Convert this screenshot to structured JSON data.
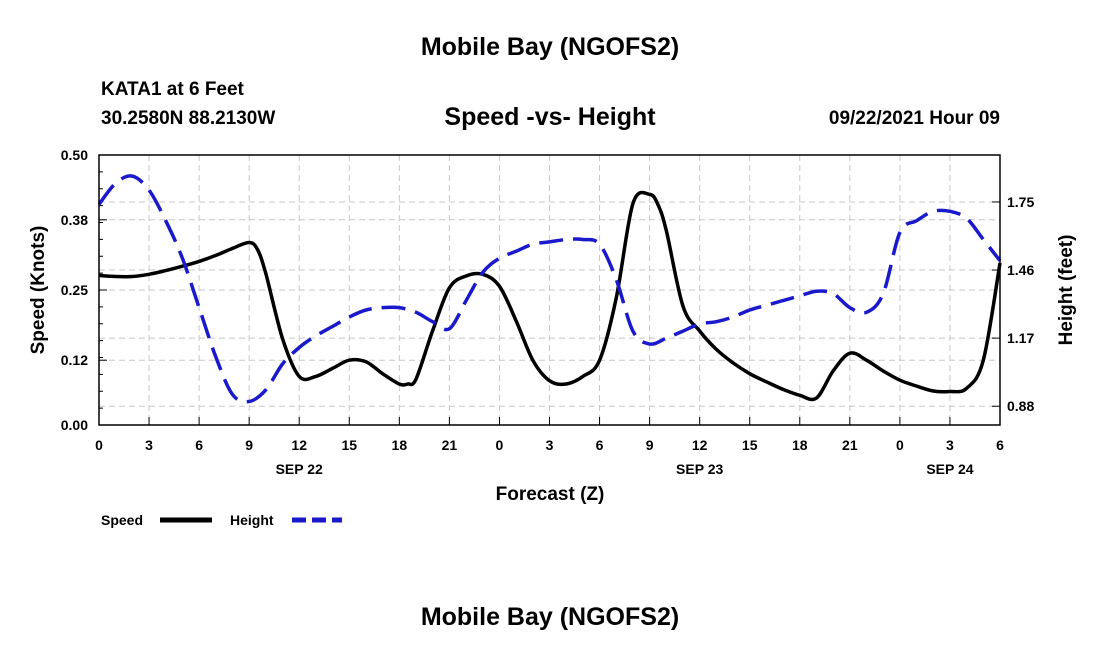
{
  "header": {
    "title": "Mobile Bay (NGOFS2)",
    "station": "KATA1 at 6 Feet",
    "coords": "30.2580N  88.2130W",
    "subtitle": "Speed -vs- Height",
    "datetime": "09/22/2021 Hour 09"
  },
  "footer": {
    "title": "Mobile Bay (NGOFS2)"
  },
  "chart_data": {
    "type": "line",
    "xlabel": "Forecast (Z)",
    "ylabel": "Speed (Knots)",
    "y2label": "Height (feet)",
    "xlim": [
      0,
      54
    ],
    "ylim": [
      0,
      0.5
    ],
    "y2lim": [
      0.8,
      1.95
    ],
    "grid": true,
    "legend_position": "bottom-left",
    "x_ticks": [
      0,
      3,
      6,
      9,
      12,
      15,
      18,
      21,
      24,
      27,
      30,
      33,
      36,
      39,
      42,
      45,
      48,
      51,
      54
    ],
    "x_tick_labels": [
      "0",
      "3",
      "6",
      "9",
      "12",
      "15",
      "18",
      "21",
      "0",
      "3",
      "6",
      "9",
      "12",
      "15",
      "18",
      "21",
      "0",
      "3",
      "6"
    ],
    "date_labels": [
      {
        "x": 12,
        "label": "SEP 22"
      },
      {
        "x": 36,
        "label": "SEP 23"
      },
      {
        "x": 51,
        "label": "SEP 24"
      }
    ],
    "y_ticks": [
      0.0,
      0.12,
      0.25,
      0.38,
      0.5
    ],
    "y_tick_labels": [
      "0.00",
      "0.12",
      "0.25",
      "0.38",
      "0.50"
    ],
    "y2_ticks": [
      0.88,
      1.17,
      1.46,
      1.75
    ],
    "y2_tick_labels": [
      "0.88",
      "1.17",
      "1.46",
      "1.75"
    ],
    "series": [
      {
        "name": "Speed",
        "axis": "left",
        "color": "#000000",
        "style": "solid",
        "x": [
          0,
          1,
          2,
          3,
          4,
          5,
          6,
          7,
          8,
          9,
          9.5,
          10,
          11,
          12,
          13,
          14,
          15,
          16,
          17,
          18,
          18.5,
          19,
          20,
          21,
          22,
          23,
          24,
          25,
          26,
          27,
          28,
          29,
          30,
          31,
          32,
          33,
          33.5,
          34,
          35,
          36,
          37,
          38,
          39,
          40,
          41,
          42,
          43,
          44,
          45,
          46,
          47,
          48,
          49,
          50,
          51,
          52,
          53,
          54
        ],
        "y": [
          0.277,
          0.275,
          0.275,
          0.279,
          0.286,
          0.294,
          0.303,
          0.314,
          0.327,
          0.338,
          0.325,
          0.28,
          0.16,
          0.09,
          0.09,
          0.105,
          0.12,
          0.117,
          0.095,
          0.076,
          0.076,
          0.085,
          0.175,
          0.254,
          0.276,
          0.279,
          0.257,
          0.193,
          0.12,
          0.082,
          0.076,
          0.09,
          0.12,
          0.235,
          0.41,
          0.427,
          0.408,
          0.36,
          0.22,
          0.174,
          0.14,
          0.115,
          0.095,
          0.08,
          0.066,
          0.055,
          0.05,
          0.1,
          0.133,
          0.12,
          0.1,
          0.083,
          0.072,
          0.063,
          0.062,
          0.068,
          0.12,
          0.3
        ]
      },
      {
        "name": "Height",
        "axis": "right",
        "color": "#1a1acc",
        "style": "dashed",
        "x": [
          0,
          1,
          2,
          3,
          4,
          5,
          6,
          7,
          8,
          9,
          10,
          11,
          12,
          13,
          14,
          15,
          16,
          17,
          18,
          19,
          20,
          21,
          22,
          23,
          24,
          25,
          26,
          27,
          28,
          29,
          30,
          31,
          32,
          33,
          34,
          35,
          36,
          37,
          38,
          39,
          40,
          41,
          42,
          43,
          44,
          45,
          46,
          47,
          48,
          49,
          50,
          51,
          52,
          53,
          54
        ],
        "y": [
          1.74,
          1.83,
          1.86,
          1.8,
          1.67,
          1.51,
          1.3,
          1.09,
          0.93,
          0.9,
          0.95,
          1.06,
          1.13,
          1.18,
          1.22,
          1.26,
          1.29,
          1.3,
          1.3,
          1.28,
          1.24,
          1.21,
          1.33,
          1.45,
          1.51,
          1.54,
          1.57,
          1.58,
          1.59,
          1.59,
          1.57,
          1.42,
          1.2,
          1.145,
          1.17,
          1.2,
          1.23,
          1.24,
          1.26,
          1.29,
          1.31,
          1.33,
          1.35,
          1.37,
          1.36,
          1.3,
          1.28,
          1.36,
          1.62,
          1.67,
          1.71,
          1.71,
          1.68,
          1.59,
          1.5
        ]
      }
    ],
    "legend": [
      {
        "name": "Speed",
        "color": "#000000",
        "style": "solid"
      },
      {
        "name": "Height",
        "color": "#1a1acc",
        "style": "dashed"
      }
    ]
  }
}
